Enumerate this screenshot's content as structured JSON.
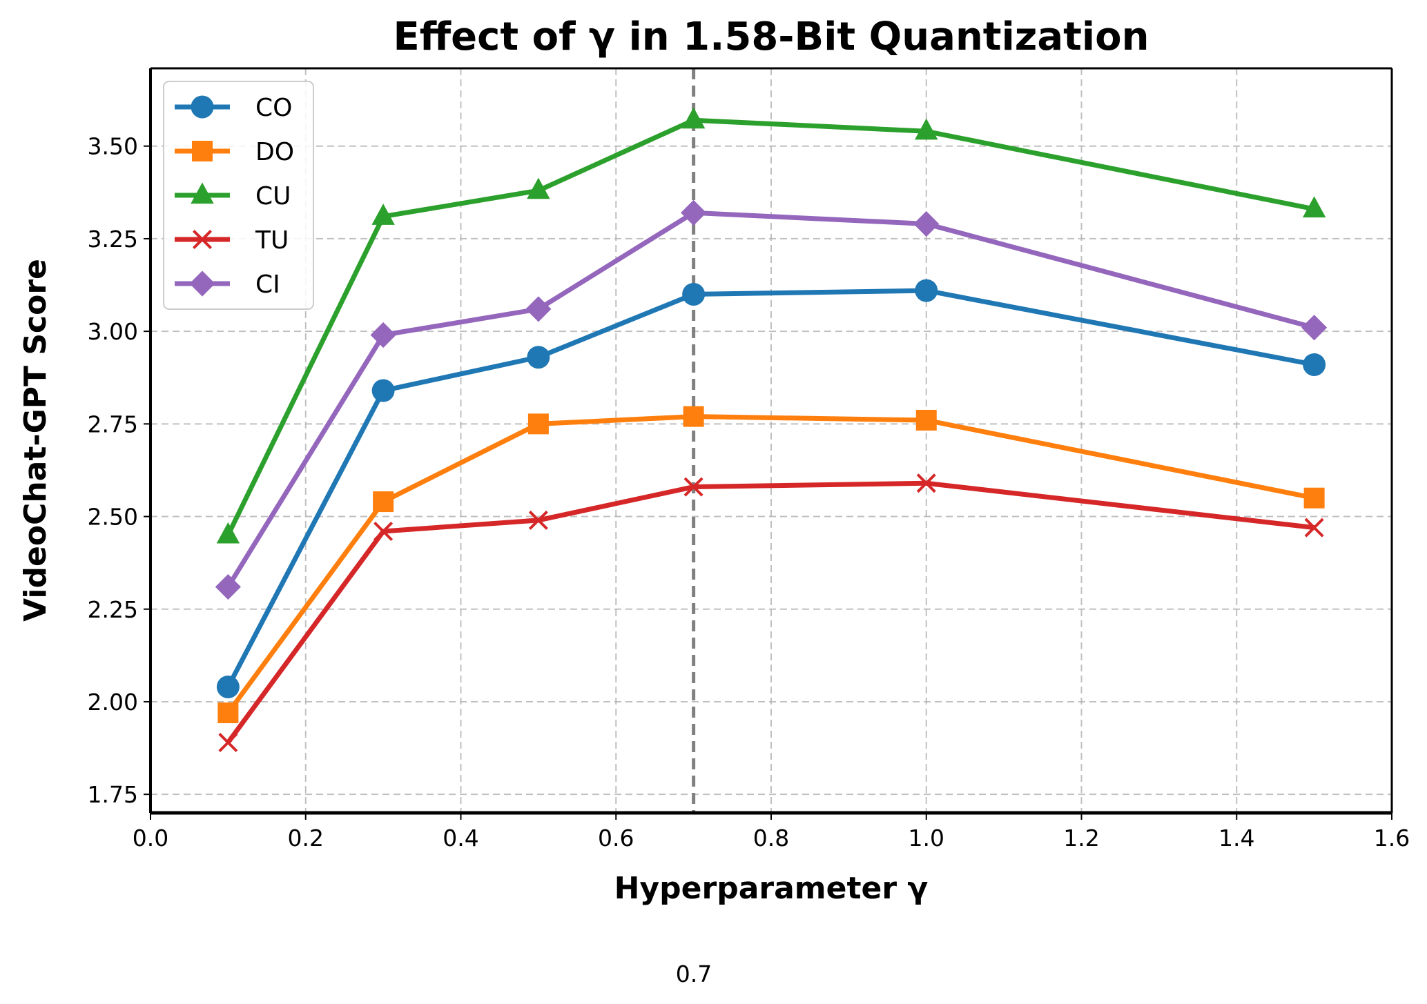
{
  "chart_data": {
    "type": "line",
    "title": "Effect of γ in 1.58-Bit Quantization",
    "xlabel": "Hyperparameter γ",
    "ylabel": "VideoChat-GPT Score",
    "xlim": [
      0.0,
      1.6
    ],
    "ylim": [
      1.7,
      3.71
    ],
    "x_ticks": [
      0.0,
      0.2,
      0.4,
      0.6,
      0.8,
      1.0,
      1.2,
      1.4,
      1.6
    ],
    "x_tick_labels": [
      "0.0",
      "0.2",
      "0.4",
      "0.6",
      "0.8",
      "1.0",
      "1.2",
      "1.4",
      "1.6"
    ],
    "y_ticks": [
      1.75,
      2.0,
      2.25,
      2.5,
      2.75,
      3.0,
      3.25,
      3.5
    ],
    "y_tick_labels": [
      "1.75",
      "2.00",
      "2.25",
      "2.50",
      "2.75",
      "3.00",
      "3.25",
      "3.50"
    ],
    "grid": true,
    "legend_position": "upper-left",
    "x": [
      0.1,
      0.3,
      0.5,
      0.7,
      1.0,
      1.5
    ],
    "series": [
      {
        "name": "CO",
        "color": "#1f77b4",
        "marker": "circle",
        "values": [
          2.04,
          2.84,
          2.93,
          3.1,
          3.11,
          2.91
        ]
      },
      {
        "name": "DO",
        "color": "#ff7f0e",
        "marker": "square",
        "values": [
          1.97,
          2.54,
          2.75,
          2.77,
          2.76,
          2.55
        ]
      },
      {
        "name": "CU",
        "color": "#2ca02c",
        "marker": "triangle",
        "values": [
          2.45,
          3.31,
          3.38,
          3.57,
          3.54,
          3.33
        ]
      },
      {
        "name": "TU",
        "color": "#d62728",
        "marker": "x",
        "values": [
          1.89,
          2.46,
          2.49,
          2.58,
          2.59,
          2.47
        ]
      },
      {
        "name": "CI",
        "color": "#9467bd",
        "marker": "diamond",
        "values": [
          2.31,
          2.99,
          3.06,
          3.32,
          3.29,
          3.01
        ]
      }
    ],
    "reference_line": {
      "x": 0.7,
      "label": "0.7",
      "color": "#808080",
      "style": "dashed"
    }
  }
}
